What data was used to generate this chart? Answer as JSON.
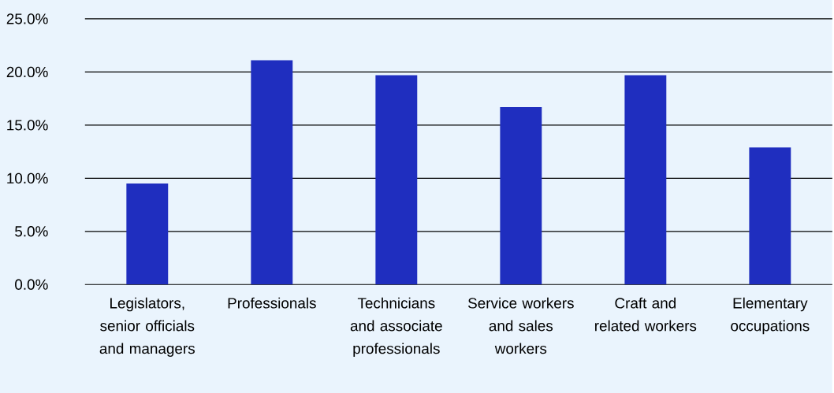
{
  "chart_data": {
    "type": "bar",
    "categories": [
      "Legislators, senior officials and managers",
      "Professionals",
      "Technicians and associate professionals",
      "Service workers and sales workers",
      "Craft and related workers",
      "Elementary occupations"
    ],
    "values": [
      9.5,
      21.1,
      19.7,
      16.7,
      19.7,
      12.9
    ],
    "color": "#1f2ebf",
    "ylim": [
      0,
      25
    ],
    "yticks": [
      {
        "value": 0,
        "label": "0.0%"
      },
      {
        "value": 5,
        "label": "5.0%"
      },
      {
        "value": 10,
        "label": "10.0%"
      },
      {
        "value": 15,
        "label": "15.0%"
      },
      {
        "value": 20,
        "label": "20.0%"
      },
      {
        "value": 25,
        "label": "25.0%"
      }
    ],
    "grid": "y"
  }
}
